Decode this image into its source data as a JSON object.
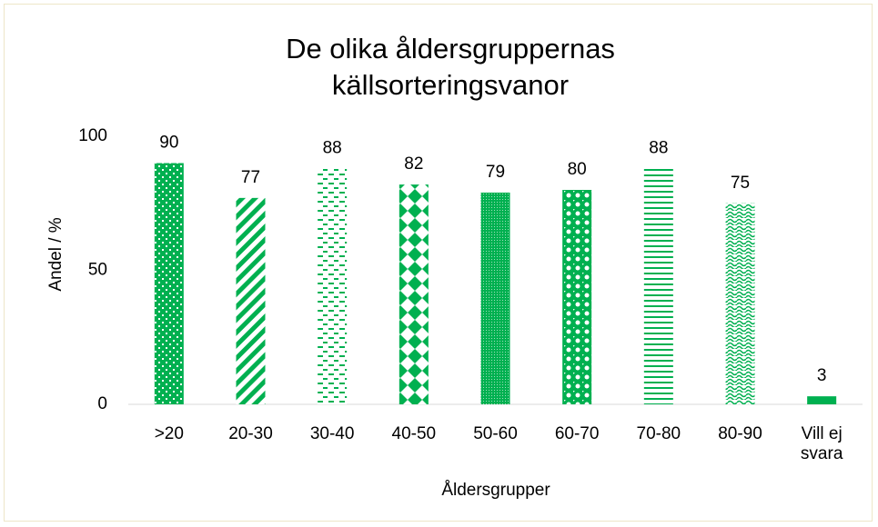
{
  "chart_data": {
    "type": "bar",
    "title": "De olika åldersgruppernas källsorteringsvanor",
    "x_label": "Åldersgrupper",
    "y_label": "Andel / %",
    "categories": [
      ">20",
      "20-30",
      "30-40",
      "40-50",
      "50-60",
      "60-70",
      "70-80",
      "80-90",
      "Vill ej svara"
    ],
    "values": [
      90,
      77,
      88,
      82,
      79,
      80,
      88,
      75,
      3
    ],
    "color": "#00b050",
    "ylim": [
      0,
      100
    ],
    "yticks": [
      0,
      50,
      100
    ],
    "grid": false
  }
}
